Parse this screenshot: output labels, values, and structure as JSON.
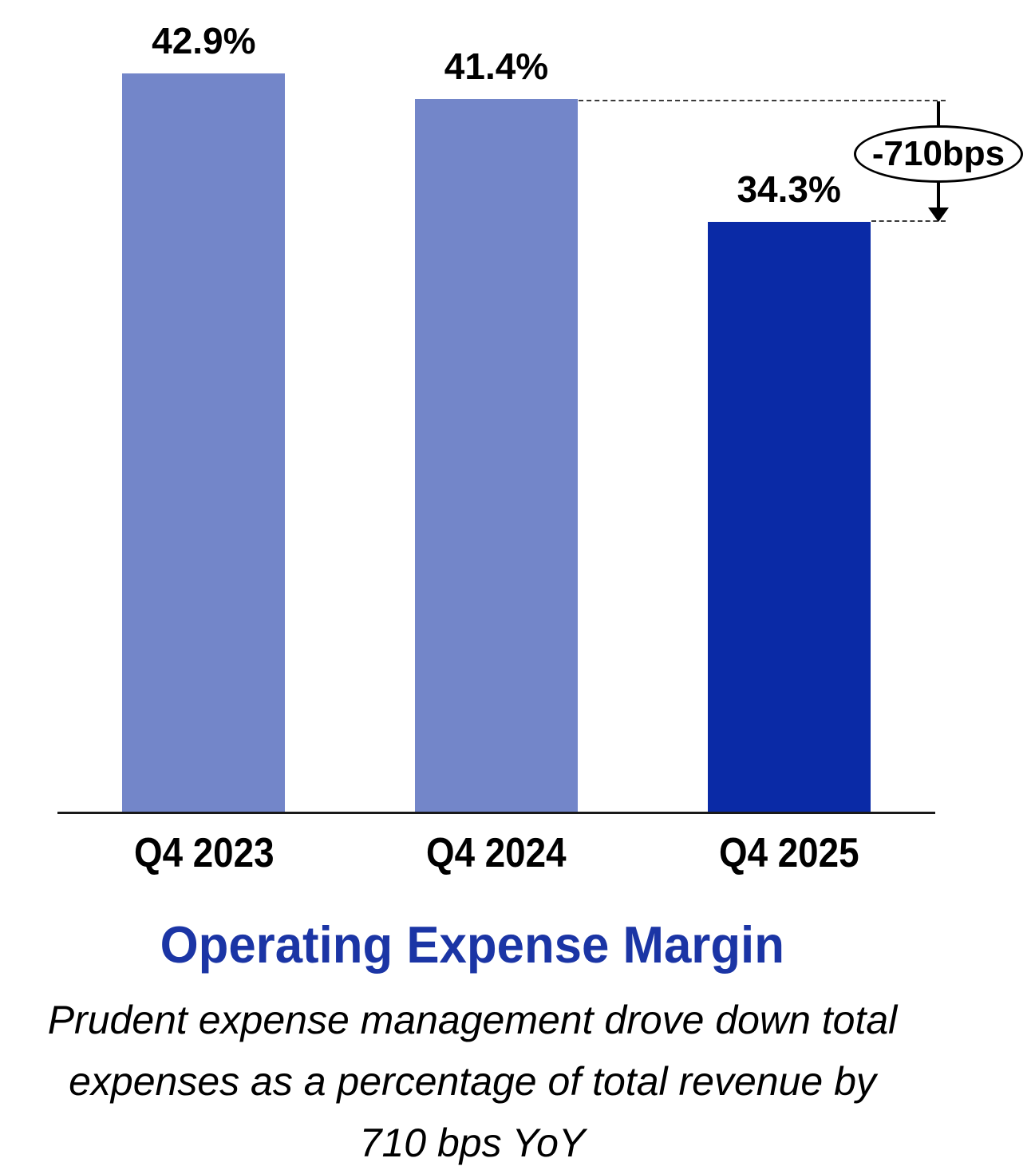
{
  "chart_data": {
    "type": "bar",
    "title": "Operating Expense Margin",
    "subtitle": "Prudent expense management drove down total expenses as a percentage of total revenue by 710 bps YoY",
    "subtitle_lines": [
      "Prudent expense management drove down total",
      "expenses as a percentage of total revenue by",
      "710 bps YoY"
    ],
    "categories": [
      "Q4 2023",
      "Q4 2024",
      "Q4 2025"
    ],
    "values": [
      42.9,
      41.4,
      34.3
    ],
    "value_labels": [
      "42.9%",
      "41.4%",
      "34.3%"
    ],
    "unit": "%",
    "ylim": [
      0,
      42.9
    ],
    "grid": false,
    "legend": "none",
    "bar_colors": [
      "#7386C9",
      "#7386C9",
      "#0A2AA6"
    ],
    "annotation": {
      "label": "-710bps",
      "from_category": "Q4 2024",
      "to_category": "Q4 2025",
      "delta_bps": -710
    },
    "colors": {
      "bar_light": "#7386C9",
      "bar_dark": "#0A2AA6",
      "title": "#1B35A5",
      "axis_line": "#1a1a1a",
      "label_text": "#000000"
    }
  }
}
